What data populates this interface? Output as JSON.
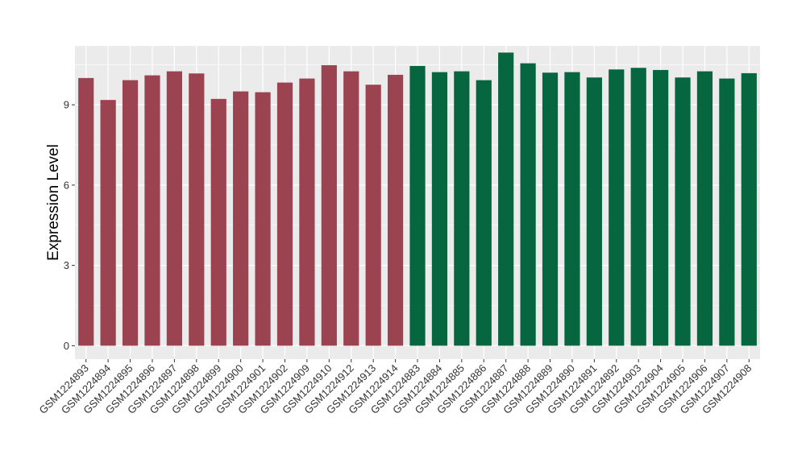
{
  "chart_data": {
    "type": "bar",
    "xlabel": "",
    "ylabel": "Expression Level",
    "ylim": [
      -0.5,
      11.2
    ],
    "yticks": [
      0,
      3,
      6,
      9
    ],
    "grid": true,
    "legend": "none",
    "colors": {
      "group1": "#9B4350",
      "group2": "#056640",
      "panel": "#EBEBEB",
      "gridline": "#FFFFFF"
    },
    "categories": [
      "GSM1224893",
      "GSM1224894",
      "GSM1224895",
      "GSM1224896",
      "GSM1224897",
      "GSM1224898",
      "GSM1224899",
      "GSM1224900",
      "GSM1224901",
      "GSM1224902",
      "GSM1224909",
      "GSM1224910",
      "GSM1224912",
      "GSM1224913",
      "GSM1224914",
      "GSM1224883",
      "GSM1224884",
      "GSM1224885",
      "GSM1224886",
      "GSM1224887",
      "GSM1224888",
      "GSM1224889",
      "GSM1224890",
      "GSM1224891",
      "GSM1224892",
      "GSM1224903",
      "GSM1224904",
      "GSM1224905",
      "GSM1224906",
      "GSM1224907",
      "GSM1224908"
    ],
    "values": [
      10.0,
      9.18,
      9.92,
      10.1,
      10.25,
      10.17,
      9.22,
      9.5,
      9.47,
      9.83,
      9.98,
      10.48,
      10.25,
      9.75,
      10.12,
      10.45,
      10.22,
      10.25,
      9.92,
      10.95,
      10.55,
      10.2,
      10.22,
      10.02,
      10.32,
      10.38,
      10.3,
      10.02,
      10.25,
      9.98,
      10.18
    ],
    "groups": [
      "group1",
      "group1",
      "group1",
      "group1",
      "group1",
      "group1",
      "group1",
      "group1",
      "group1",
      "group1",
      "group1",
      "group1",
      "group1",
      "group1",
      "group1",
      "group2",
      "group2",
      "group2",
      "group2",
      "group2",
      "group2",
      "group2",
      "group2",
      "group2",
      "group2",
      "group2",
      "group2",
      "group2",
      "group2",
      "group2",
      "group2"
    ]
  }
}
